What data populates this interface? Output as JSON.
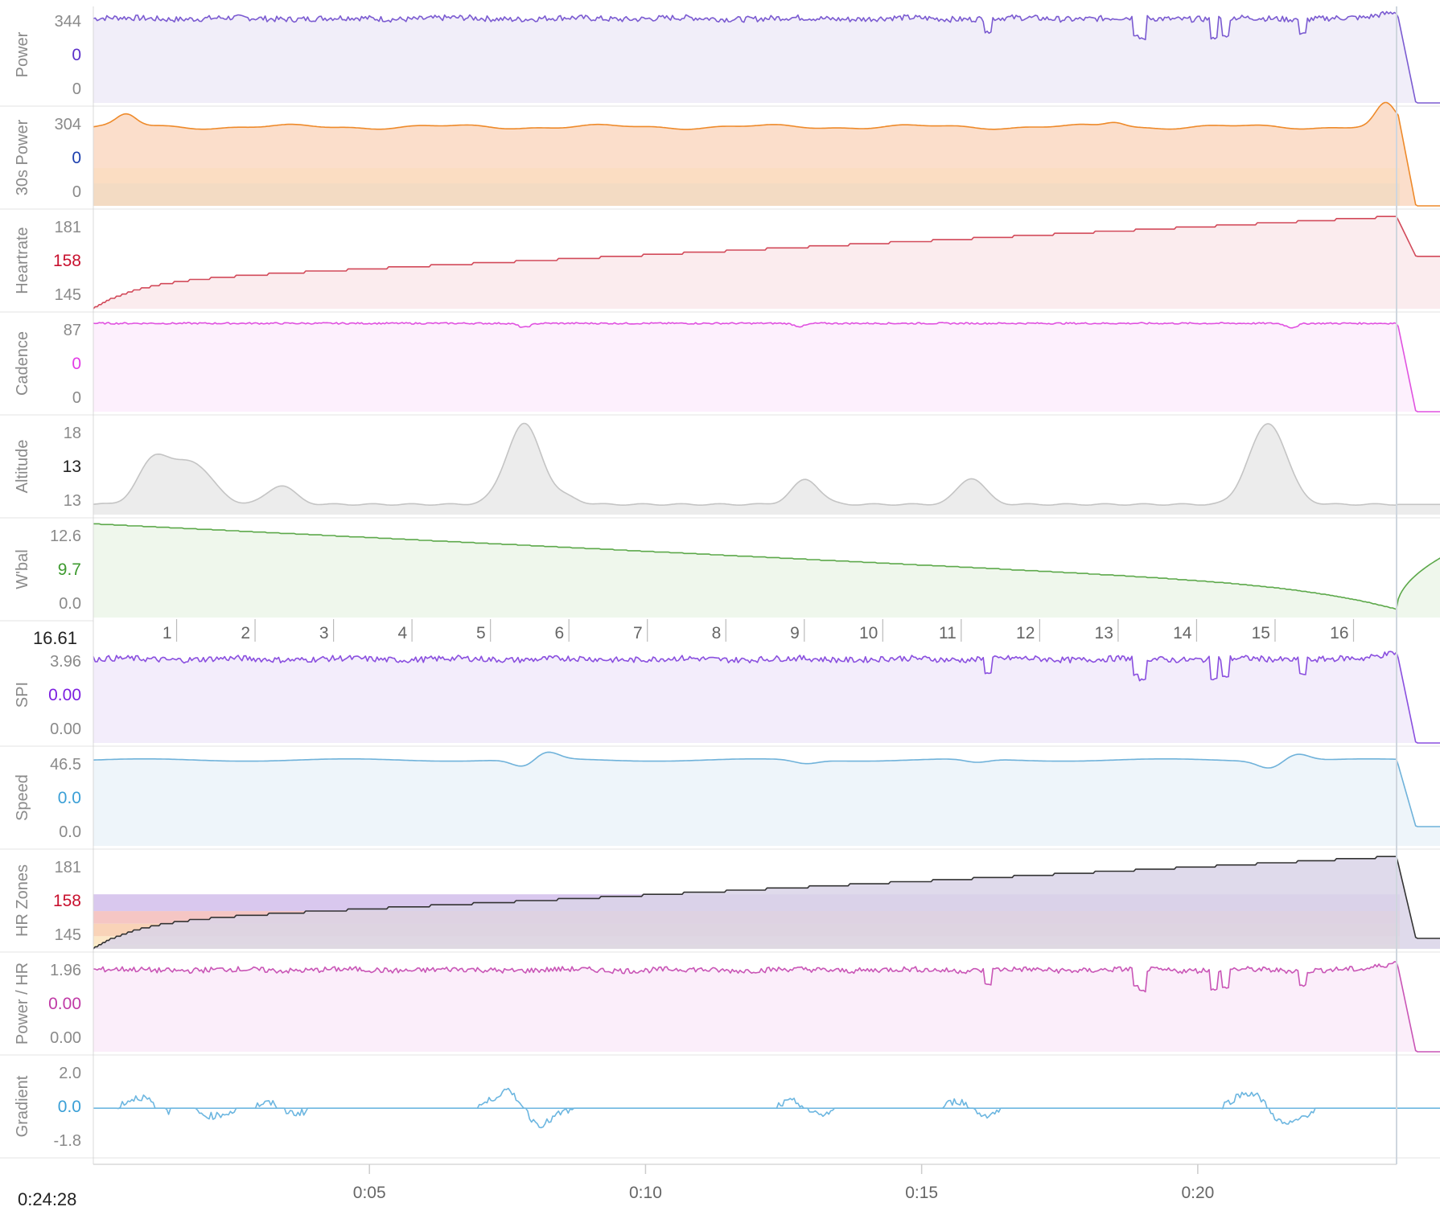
{
  "chart_data": {
    "type": "line",
    "distance_readout": "16.61",
    "elapsed_readout": "0:24:28",
    "time_ticks": [
      {
        "minutes": 5,
        "label": "0:05"
      },
      {
        "minutes": 10,
        "label": "0:10"
      },
      {
        "minutes": 15,
        "label": "0:15"
      },
      {
        "minutes": 20,
        "label": "0:20"
      }
    ],
    "distance_ticks": [
      "1",
      "2",
      "3",
      "4",
      "5",
      "6",
      "7",
      "8",
      "9",
      "10",
      "11",
      "12",
      "13",
      "14",
      "15",
      "16"
    ],
    "time_range_minutes": [
      0,
      24.47
    ],
    "cursor_minutes": 23.6,
    "panels": [
      {
        "name": "Power",
        "label": "Power",
        "ticks": [
          "344",
          "0",
          "0"
        ],
        "current_color": "#5b2fc9",
        "color": "#7b5bd1",
        "fill": "#f1eef9",
        "ylim": [
          0,
          360
        ],
        "series": {
          "type": "noisy",
          "base": 315,
          "noise": 11,
          "drops": [
            [
              16.2,
              260
            ],
            [
              18.9,
              250
            ],
            [
              19.0,
              235
            ],
            [
              20.5,
              245
            ],
            [
              21.9,
              255
            ],
            [
              20.3,
              238
            ]
          ],
          "end_value": 350,
          "after_cursor": 0
        }
      },
      {
        "name": "30s Power",
        "label": "30s Power",
        "ticks": [
          "304",
          "0",
          "0"
        ],
        "current_color": "#1c3fae",
        "color": "#ee8a2a",
        "fill": "#fad8c2",
        "ylim": [
          0,
          320
        ],
        "zones": [
          {
            "from": 0,
            "to": 75,
            "color": "#c8e6c9"
          },
          {
            "from": 75,
            "to": 125,
            "color": "#fff3c4"
          }
        ],
        "series": {
          "type": "smooth",
          "base": 262,
          "noise": 6,
          "peaks": [
            [
              0.6,
              300
            ],
            [
              18.5,
              278
            ],
            [
              23.4,
              335
            ]
          ],
          "end_value": 330,
          "after_cursor": 0
        }
      },
      {
        "name": "Heartrate",
        "label": "Heartrate",
        "ticks": [
          "181",
          "158",
          "145"
        ],
        "current_color": "#c8102e",
        "color": "#d24a5a",
        "fill": "#fbecee",
        "ylim": [
          140,
          186
        ],
        "series": {
          "type": "rising",
          "start": 140,
          "knee": 153,
          "end": 184,
          "after_cursor": 165
        }
      },
      {
        "name": "Cadence",
        "label": "Cadence",
        "ticks": [
          "87",
          "0",
          "0"
        ],
        "current_color": "#e23ce6",
        "color": "#e052e0",
        "fill": "#fdf0fd",
        "ylim": [
          0,
          95
        ],
        "series": {
          "type": "flat",
          "base": 87,
          "noise": 0.8,
          "dips": [
            [
              7.8,
              83
            ],
            [
              12.8,
              84
            ],
            [
              21.7,
              83
            ]
          ],
          "end_value": 92,
          "after_cursor": 0
        }
      },
      {
        "name": "Altitude",
        "label": "Altitude",
        "ticks": [
          "18",
          "13",
          "13"
        ],
        "current_color": "#222222",
        "color": "#c4c4c4",
        "fill": "#ececec",
        "ylim": [
          12.1,
          18.7
        ],
        "series": {
          "type": "hills",
          "base": 12.8,
          "hills": [
            [
              1.1,
              15.8,
              0.4
            ],
            [
              1.8,
              15.6,
              0.5
            ],
            [
              3.4,
              14.1,
              0.35
            ],
            [
              7.8,
              18.3,
              0.45
            ],
            [
              8.6,
              13.2,
              0.3
            ],
            [
              12.9,
              14.5,
              0.35
            ],
            [
              15.9,
              14.6,
              0.35
            ],
            [
              21.3,
              18.2,
              0.45
            ],
            [
              20.9,
              13.4,
              0.3
            ]
          ],
          "after_cursor": 12.8
        }
      },
      {
        "name": "W'bal",
        "label": "W'bal",
        "ticks": [
          "12.6",
          "9.7",
          "0.0"
        ],
        "current_color": "#3d9a2f",
        "color": "#5ca84a",
        "fill": "#eff7ec",
        "ylim": [
          0,
          14.0
        ],
        "series": {
          "type": "declining",
          "start": 13.6,
          "end": 4.2,
          "min": 1.2,
          "recover_to": 9.0
        }
      },
      {
        "name": "SPI",
        "label": "SPI",
        "ticks": [
          "3.96",
          "0.00",
          "0.00"
        ],
        "current_color": "#7c1fe0",
        "color": "#8a4fdf",
        "fill": "#f3edfb",
        "ylim": [
          0,
          4.2
        ],
        "series": {
          "type": "noisy",
          "base": 3.65,
          "noise": 0.13,
          "drops": [
            [
              16.2,
              3.0
            ],
            [
              18.9,
              2.9
            ],
            [
              19.0,
              2.7
            ],
            [
              20.5,
              2.85
            ],
            [
              21.9,
              2.95
            ],
            [
              20.3,
              2.75
            ]
          ],
          "end_value": 4.05,
          "after_cursor": 0
        }
      },
      {
        "name": "Speed",
        "label": "Speed",
        "ticks": [
          "46.5",
          "0.0",
          "0.0"
        ],
        "current_color": "#3a9fd6",
        "color": "#6fb2da",
        "fill": "#eef5fa",
        "ylim": [
          0,
          50
        ],
        "series": {
          "type": "speed",
          "base": 44.5,
          "bumps": [
            [
              7.8,
              40.5
            ],
            [
              8.2,
              48.5
            ],
            [
              21.3,
              40.8
            ],
            [
              21.8,
              48.0
            ],
            [
              12.9,
              42.6
            ],
            [
              16.0,
              42.8
            ]
          ],
          "end_value": 45,
          "after_cursor": 10
        }
      },
      {
        "name": "HR Zones",
        "label": "HR Zones",
        "ticks": [
          "181",
          "158",
          "145"
        ],
        "current_color": "#c8102e",
        "color": "#333333",
        "fill": "#d9d3e8",
        "ylim": [
          140,
          186
        ],
        "zones": [
          {
            "from": 140,
            "to": 142,
            "color": "#fff3c4"
          },
          {
            "from": 142,
            "to": 146,
            "color": "#fce8c8"
          },
          {
            "from": 146,
            "to": 152,
            "color": "#f9d3b8"
          },
          {
            "from": 152,
            "to": 158,
            "color": "#f5c6c4"
          },
          {
            "from": 158,
            "to": 166,
            "color": "#d9c8ee"
          }
        ],
        "series": {
          "type": "rising",
          "start": 140,
          "knee": 153,
          "end": 184,
          "after_cursor": 145
        }
      },
      {
        "name": "Power / HR",
        "label": "Power / HR",
        "ticks": [
          "1.96",
          "0.00",
          "0.00"
        ],
        "current_color": "#c03aa6",
        "color": "#c955b6",
        "fill": "#fbeefa",
        "ylim": [
          0,
          2.1
        ],
        "series": {
          "type": "noisy",
          "base": 1.78,
          "noise": 0.06,
          "drops": [
            [
              16.2,
              1.45
            ],
            [
              18.9,
              1.4
            ],
            [
              19.0,
              1.3
            ],
            [
              20.5,
              1.38
            ],
            [
              21.9,
              1.42
            ],
            [
              20.3,
              1.33
            ]
          ],
          "end_value": 2.0,
          "after_cursor": 0
        }
      },
      {
        "name": "Gradient",
        "label": "Gradient",
        "ticks": [
          "2.0",
          "0.0",
          "-1.8"
        ],
        "current_color": "#3a9fd6",
        "color": "#6cb6e0",
        "fill": "none",
        "ylim": [
          -2.6,
          2.8
        ],
        "series": {
          "type": "gradient"
        }
      }
    ]
  }
}
